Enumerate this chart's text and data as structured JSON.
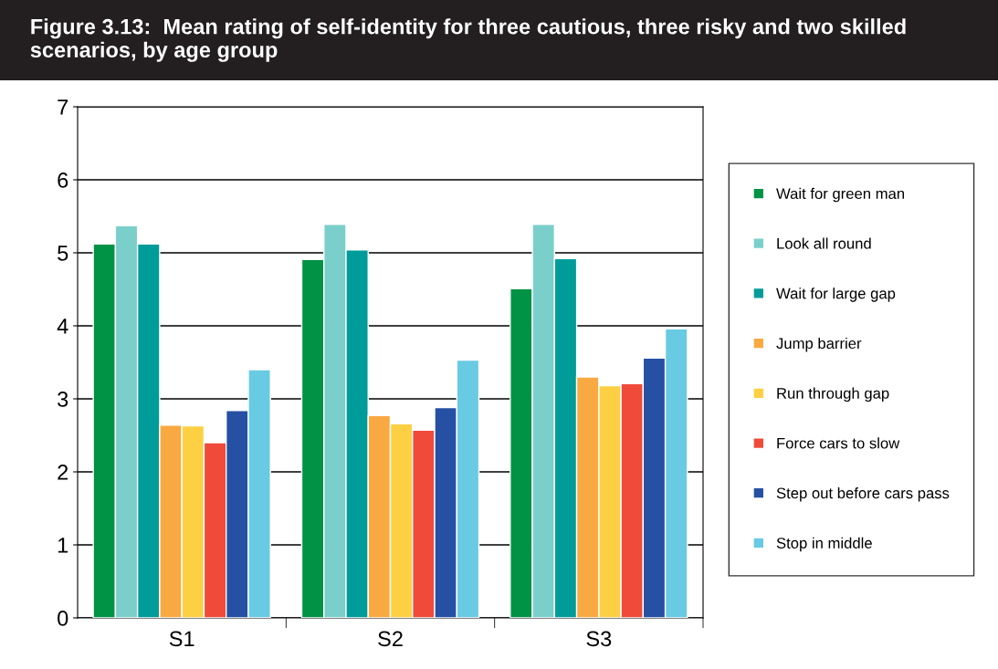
{
  "chart_data": {
    "type": "bar",
    "title": "Figure 3.13:  Mean rating of self-identity for three cautious, three risky and two skilled scenarios, by age group",
    "categories": [
      "S1",
      "S2",
      "S3"
    ],
    "series": [
      {
        "name": "Wait for green man",
        "color": "#009245",
        "values": [
          5.12,
          4.91,
          4.51
        ]
      },
      {
        "name": "Look all round",
        "color": "#7acfcb",
        "values": [
          5.37,
          5.39,
          5.39
        ]
      },
      {
        "name": "Wait for large gap",
        "color": "#009c9a",
        "values": [
          5.12,
          5.04,
          4.92
        ]
      },
      {
        "name": "Jump barrier",
        "color": "#f9a942",
        "values": [
          2.64,
          2.77,
          3.3
        ]
      },
      {
        "name": "Run through gap",
        "color": "#fdd043",
        "values": [
          2.63,
          2.66,
          3.18
        ]
      },
      {
        "name": "Force cars to slow",
        "color": "#ef4a3a",
        "values": [
          2.4,
          2.57,
          3.21
        ]
      },
      {
        "name": "Step out before cars pass",
        "color": "#2550a3",
        "values": [
          2.84,
          2.88,
          3.56
        ]
      },
      {
        "name": "Stop in middle",
        "color": "#68cae3",
        "values": [
          3.4,
          3.53,
          3.96
        ]
      }
    ],
    "ylim": [
      0,
      7
    ],
    "yticks": [
      0,
      1,
      2,
      3,
      4,
      5,
      6,
      7
    ],
    "grid": "y",
    "legend": "right"
  }
}
